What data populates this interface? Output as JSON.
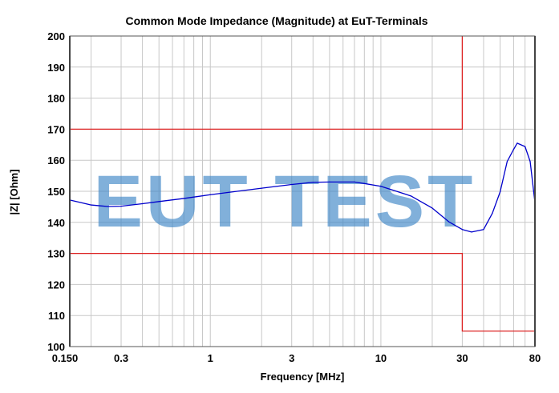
{
  "chart_data": {
    "type": "line",
    "title": "Common Mode Impedance (Magnitude) at EuT-Terminals",
    "xlabel": "Frequency [MHz]",
    "ylabel": "|Z| [Ohm]",
    "xscale": "log",
    "xlim": [
      0.15,
      80
    ],
    "ylim": [
      100,
      200
    ],
    "grid": true,
    "x_tick_labels": [
      "0.150",
      "0.3",
      "1",
      "3",
      "10",
      "30",
      "80"
    ],
    "x_ticks": [
      0.15,
      0.3,
      1,
      3,
      10,
      30,
      80
    ],
    "y_ticks": [
      100,
      110,
      120,
      130,
      140,
      150,
      160,
      170,
      180,
      190,
      200
    ],
    "series": [
      {
        "color": "#0000cc",
        "x": [
          0.15,
          0.2,
          0.25,
          0.3,
          0.4,
          0.5,
          0.7,
          1,
          2,
          3,
          4,
          5,
          7,
          8,
          10,
          15,
          20,
          25,
          30,
          34,
          40,
          45,
          50,
          55,
          60,
          63,
          70,
          75,
          80
        ],
        "y": [
          147.2,
          145.6,
          145.1,
          145.2,
          146.0,
          146.7,
          147.7,
          148.9,
          151.0,
          152.2,
          152.9,
          153.0,
          153.0,
          152.5,
          151.6,
          148.5,
          144.6,
          140.2,
          137.7,
          136.9,
          137.7,
          142.9,
          149.8,
          159.6,
          163.5,
          165.5,
          164.4,
          159.6,
          146.4
        ]
      }
    ],
    "limit_lines": [
      {
        "color": "#dd2222",
        "x": [
          0.15,
          30,
          30
        ],
        "y": [
          170,
          170,
          200
        ]
      },
      {
        "color": "#dd2222",
        "x": [
          0.15,
          30,
          30,
          80
        ],
        "y": [
          130,
          130,
          105,
          105
        ]
      }
    ]
  },
  "watermark": {
    "text": "EUT TEST",
    "color": "#3d85c6"
  }
}
